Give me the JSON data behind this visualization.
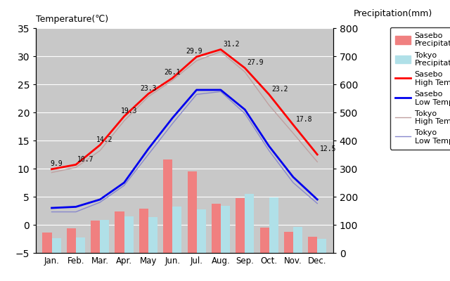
{
  "months": [
    "Jan.",
    "Feb.",
    "Mar.",
    "Apr.",
    "May",
    "Jun.",
    "Jul.",
    "Aug.",
    "Sep.",
    "Oct.",
    "Nov.",
    "Dec."
  ],
  "month_x": [
    0,
    1,
    2,
    3,
    4,
    5,
    6,
    7,
    8,
    9,
    10,
    11
  ],
  "sasebo_high": [
    9.9,
    10.7,
    14.2,
    19.3,
    23.3,
    26.1,
    29.9,
    31.2,
    27.9,
    23.2,
    17.8,
    12.5
  ],
  "sasebo_low": [
    3.0,
    3.2,
    4.5,
    7.5,
    13.5,
    19.0,
    24.0,
    24.0,
    20.5,
    14.0,
    8.5,
    4.5
  ],
  "tokyo_high": [
    9.3,
    10.2,
    13.2,
    18.5,
    22.8,
    25.7,
    29.2,
    30.8,
    27.2,
    21.3,
    16.3,
    11.2
  ],
  "tokyo_low": [
    2.3,
    2.3,
    4.0,
    7.0,
    12.5,
    18.0,
    23.2,
    23.7,
    19.8,
    13.2,
    7.5,
    3.8
  ],
  "sasebo_precip_mm": [
    72,
    87,
    114,
    148,
    158,
    333,
    289,
    175,
    195,
    91,
    74,
    58
  ],
  "tokyo_precip_mm": [
    52,
    56,
    118,
    131,
    128,
    165,
    156,
    168,
    210,
    197,
    93,
    51
  ],
  "sasebo_high_labels": [
    "9.9",
    "10.7",
    "14.2",
    "19.3",
    "23.3",
    "26.1",
    "29.9",
    "31.2",
    "27.9",
    "23.2",
    "17.8",
    "12.5"
  ],
  "temp_ylim": [
    -5,
    35
  ],
  "temp_yticks": [
    -5,
    0,
    5,
    10,
    15,
    20,
    25,
    30,
    35
  ],
  "precip_ylim": [
    0,
    800
  ],
  "precip_yticks": [
    0,
    100,
    200,
    300,
    400,
    500,
    600,
    700,
    800
  ],
  "color_sasebo_precip": "#F08080",
  "color_tokyo_precip": "#B0E0E8",
  "color_sasebo_high": "#FF0000",
  "color_sasebo_low": "#0000EE",
  "color_tokyo_high": "#C0A0A0",
  "color_tokyo_low": "#8888CC",
  "bg_color": "#C8C8C8",
  "title_left": "Temperature(℃)",
  "title_right": "Precipitation(mm)",
  "bar_width": 0.38
}
